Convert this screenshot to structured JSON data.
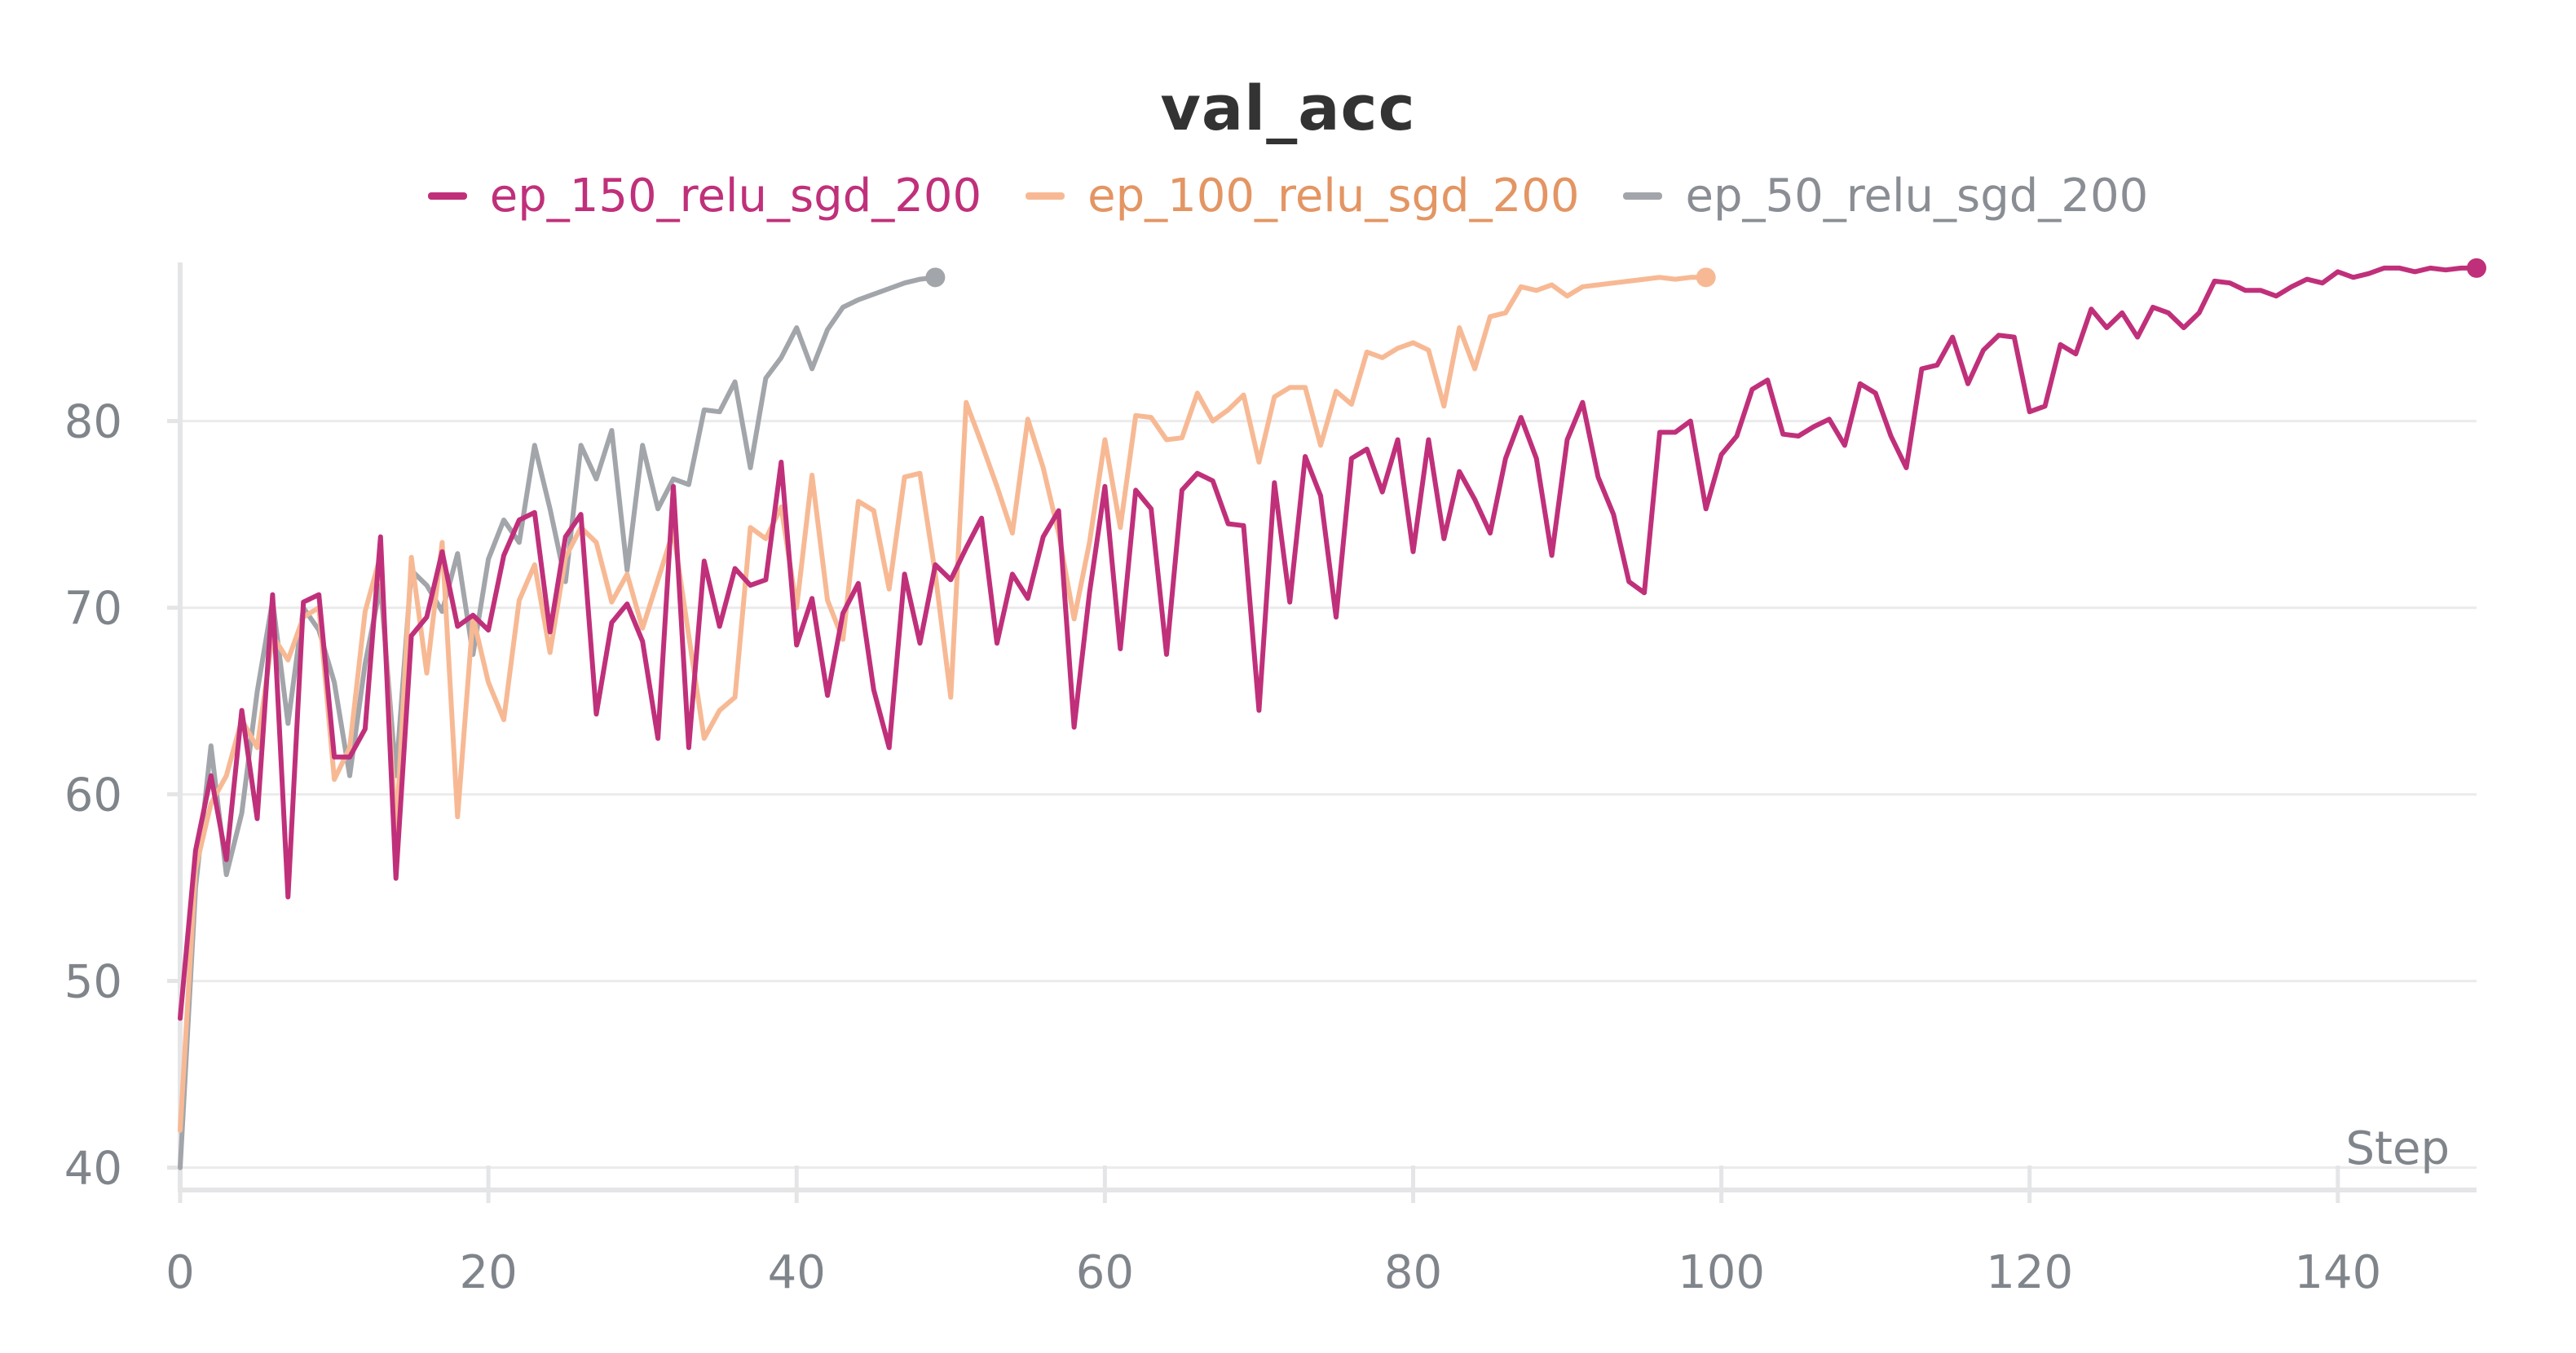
{
  "chart_data": {
    "type": "line",
    "title": "val_acc",
    "xlabel": "Step",
    "ylabel": "",
    "xlim": [
      0,
      149
    ],
    "ylim": [
      39.5,
      88.5
    ],
    "x_ticks": [
      0,
      20,
      40,
      60,
      80,
      100,
      120,
      140
    ],
    "y_ticks": [
      40,
      50,
      60,
      70,
      80
    ],
    "grid": true,
    "legend_position": "top-center",
    "series": [
      {
        "name": "ep_150_relu_sgd_200",
        "color": "#c0307a",
        "text_color": "#c0307a",
        "x": [
          0,
          1,
          2,
          3,
          4,
          5,
          6,
          7,
          8,
          9,
          10,
          11,
          12,
          13,
          14,
          15,
          16,
          17,
          18,
          19,
          20,
          21,
          22,
          23,
          24,
          25,
          26,
          27,
          28,
          29,
          30,
          31,
          32,
          33,
          34,
          35,
          36,
          37,
          38,
          39,
          40,
          41,
          42,
          43,
          44,
          45,
          46,
          47,
          48,
          49,
          50,
          51,
          52,
          53,
          54,
          55,
          56,
          57,
          58,
          59,
          60,
          61,
          62,
          63,
          64,
          65,
          66,
          67,
          68,
          69,
          70,
          71,
          72,
          73,
          74,
          75,
          76,
          77,
          78,
          79,
          80,
          81,
          82,
          83,
          84,
          85,
          86,
          87,
          88,
          89,
          90,
          91,
          92,
          93,
          94,
          95,
          96,
          97,
          98,
          99,
          100,
          101,
          102,
          103,
          104,
          105,
          106,
          107,
          108,
          109,
          110,
          111,
          112,
          113,
          114,
          115,
          116,
          117,
          118,
          119,
          120,
          121,
          122,
          123,
          124,
          125,
          126,
          127,
          128,
          129,
          130,
          131,
          132,
          133,
          134,
          135,
          136,
          137,
          138,
          139,
          140,
          141,
          142,
          143,
          144,
          145,
          146,
          147,
          148,
          149
        ],
        "values": [
          48,
          57,
          61,
          56.5,
          64.5,
          58.7,
          70.7,
          54.5,
          70.3,
          70.7,
          62,
          62,
          63.5,
          73.8,
          55.5,
          68.5,
          69.5,
          73,
          69,
          69.6,
          68.8,
          72.8,
          74.7,
          75.1,
          68.7,
          73.8,
          75,
          64.3,
          69.2,
          70.2,
          68.2,
          63,
          76.5,
          62.5,
          72.5,
          69,
          72.1,
          71.2,
          71.5,
          77.8,
          68,
          70.5,
          65.3,
          69.7,
          71.3,
          65.6,
          62.5,
          71.8,
          68.1,
          72.3,
          71.5,
          73.2,
          74.8,
          68.1,
          71.8,
          70.5,
          73.8,
          75.2,
          63.6,
          70.8,
          76.5,
          67.8,
          76.3,
          75.3,
          67.5,
          76.3,
          77.2,
          76.8,
          74.5,
          74.4,
          64.5,
          76.7,
          70.3,
          78.1,
          76,
          69.5,
          78,
          78.5,
          76.2,
          79,
          73,
          79,
          73.7,
          77.3,
          75.8,
          74,
          78,
          80.2,
          78,
          72.8,
          79,
          81,
          77,
          75,
          71.4,
          70.8,
          79.4,
          79.4,
          80,
          75.3,
          78.2,
          79.2,
          81.7,
          82.2,
          79.3,
          79.2,
          79.7,
          80.1,
          78.7,
          82,
          81.5,
          79.2,
          77.5,
          82.8,
          83,
          84.5,
          82,
          83.8,
          84.6,
          84.5,
          80.5,
          80.8,
          84.1,
          83.6,
          86,
          85,
          85.8,
          84.5,
          86.1,
          85.8,
          85,
          85.8,
          87.5,
          87.4,
          87,
          87,
          86.7,
          87.2,
          87.6,
          87.4,
          88,
          87.7,
          87.9,
          88.2,
          88.2,
          88,
          88.2,
          88.1,
          88.2,
          88.2
        ]
      },
      {
        "name": "ep_100_relu_sgd_200",
        "color": "#f7b994",
        "text_color": "#e39563",
        "x": [
          0,
          1,
          2,
          3,
          4,
          5,
          6,
          7,
          8,
          9,
          10,
          11,
          12,
          13,
          14,
          15,
          16,
          17,
          18,
          19,
          20,
          21,
          22,
          23,
          24,
          25,
          26,
          27,
          28,
          29,
          30,
          31,
          32,
          33,
          34,
          35,
          36,
          37,
          38,
          39,
          40,
          41,
          42,
          43,
          44,
          45,
          46,
          47,
          48,
          49,
          50,
          51,
          52,
          53,
          54,
          55,
          56,
          57,
          58,
          59,
          60,
          61,
          62,
          63,
          64,
          65,
          66,
          67,
          68,
          69,
          70,
          71,
          72,
          73,
          74,
          75,
          76,
          77,
          78,
          79,
          80,
          81,
          82,
          83,
          84,
          85,
          86,
          87,
          88,
          89,
          90,
          91,
          92,
          93,
          94,
          95,
          96,
          97,
          98,
          99
        ],
        "values": [
          42,
          56,
          59.5,
          61,
          64,
          62.5,
          68.5,
          67.2,
          69.5,
          70,
          60.8,
          62.5,
          69.8,
          72.8,
          57.8,
          72.7,
          66.5,
          73.5,
          58.8,
          69.5,
          66,
          64,
          70.4,
          72.3,
          67.6,
          72.7,
          74.3,
          73.5,
          70.3,
          71.8,
          68.9,
          71.5,
          74.1,
          68.5,
          63,
          64.5,
          65.2,
          74.3,
          73.7,
          75.4,
          70,
          77.1,
          70.4,
          68.3,
          75.7,
          75.2,
          71,
          77,
          77.2,
          71.8,
          65.2,
          81,
          78.8,
          76.5,
          74,
          80.1,
          77.5,
          74,
          69.4,
          73.5,
          79,
          74.3,
          80.3,
          80.2,
          79,
          79.1,
          81.5,
          80,
          80.6,
          81.4,
          77.8,
          81.3,
          81.8,
          81.8,
          78.7,
          81.6,
          80.9,
          83.7,
          83.4,
          83.9,
          84.2,
          83.8,
          80.8,
          85,
          82.8,
          85.6,
          85.8,
          87.2,
          87,
          87.3,
          86.7,
          87.2,
          87.3,
          87.4,
          87.5,
          87.6,
          87.7,
          87.6,
          87.7,
          87.7
        ]
      },
      {
        "name": "ep_50_relu_sgd_200",
        "color": "#a2a5aa",
        "text_color": "#8a8e94",
        "x": [
          0,
          1,
          2,
          3,
          4,
          5,
          6,
          7,
          8,
          9,
          10,
          11,
          12,
          13,
          14,
          15,
          16,
          17,
          18,
          19,
          20,
          21,
          22,
          23,
          24,
          25,
          26,
          27,
          28,
          29,
          30,
          31,
          32,
          33,
          34,
          35,
          36,
          37,
          38,
          39,
          40,
          41,
          42,
          43,
          44,
          45,
          46,
          47,
          48,
          49
        ],
        "values": [
          40,
          55,
          62.6,
          55.7,
          59,
          65.5,
          70.4,
          63.8,
          70,
          68.8,
          66,
          61,
          67,
          71.2,
          61,
          72,
          71.2,
          69.8,
          72.9,
          67.5,
          72.6,
          74.7,
          73.5,
          78.7,
          75.3,
          71.4,
          78.7,
          76.9,
          79.5,
          72,
          78.7,
          75.3,
          76.9,
          76.6,
          80.6,
          80.5,
          82.1,
          77.5,
          82.3,
          83.4,
          85,
          82.8,
          84.9,
          86.1,
          86.5,
          86.8,
          87.1,
          87.4,
          87.6,
          87.7
        ]
      }
    ]
  }
}
